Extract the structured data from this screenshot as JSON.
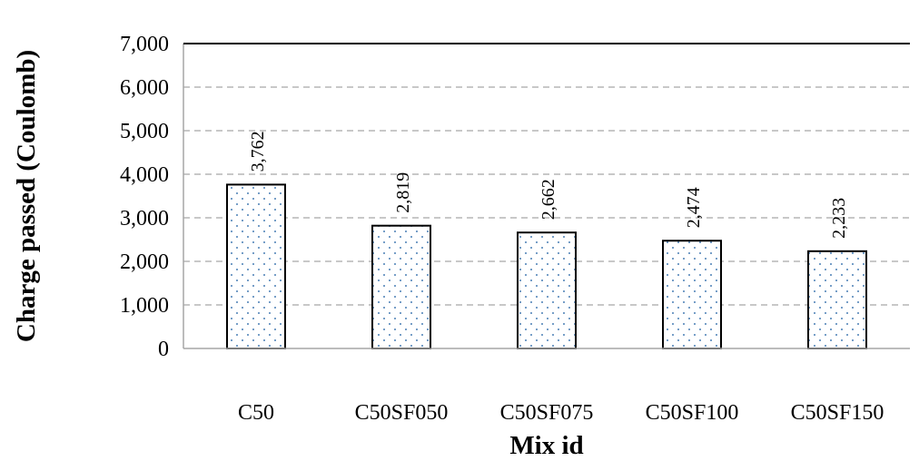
{
  "chart_data": {
    "type": "bar",
    "categories": [
      "C50",
      "C50SF050",
      "C50SF075",
      "C50SF100",
      "C50SF150"
    ],
    "values": [
      3762,
      2819,
      2662,
      2474,
      2233
    ],
    "data_labels": [
      "3,762",
      "2,819",
      "2,662",
      "2,474",
      "2,233"
    ],
    "title": "",
    "xlabel": "Mix id",
    "ylabel": "Charge passed (Coulomb)",
    "ylim": [
      0,
      7000
    ],
    "yticks": [
      0,
      1000,
      2000,
      3000,
      4000,
      5000,
      6000,
      7000
    ],
    "ytick_labels": [
      "0",
      "1,000",
      "2,000",
      "3,000",
      "4,000",
      "5,000",
      "6,000",
      "7,000"
    ],
    "grid": true,
    "legend": "none",
    "bar_fill": "#ffffff",
    "dot_color": "#4a7fb5",
    "edge_color": "#000000"
  }
}
